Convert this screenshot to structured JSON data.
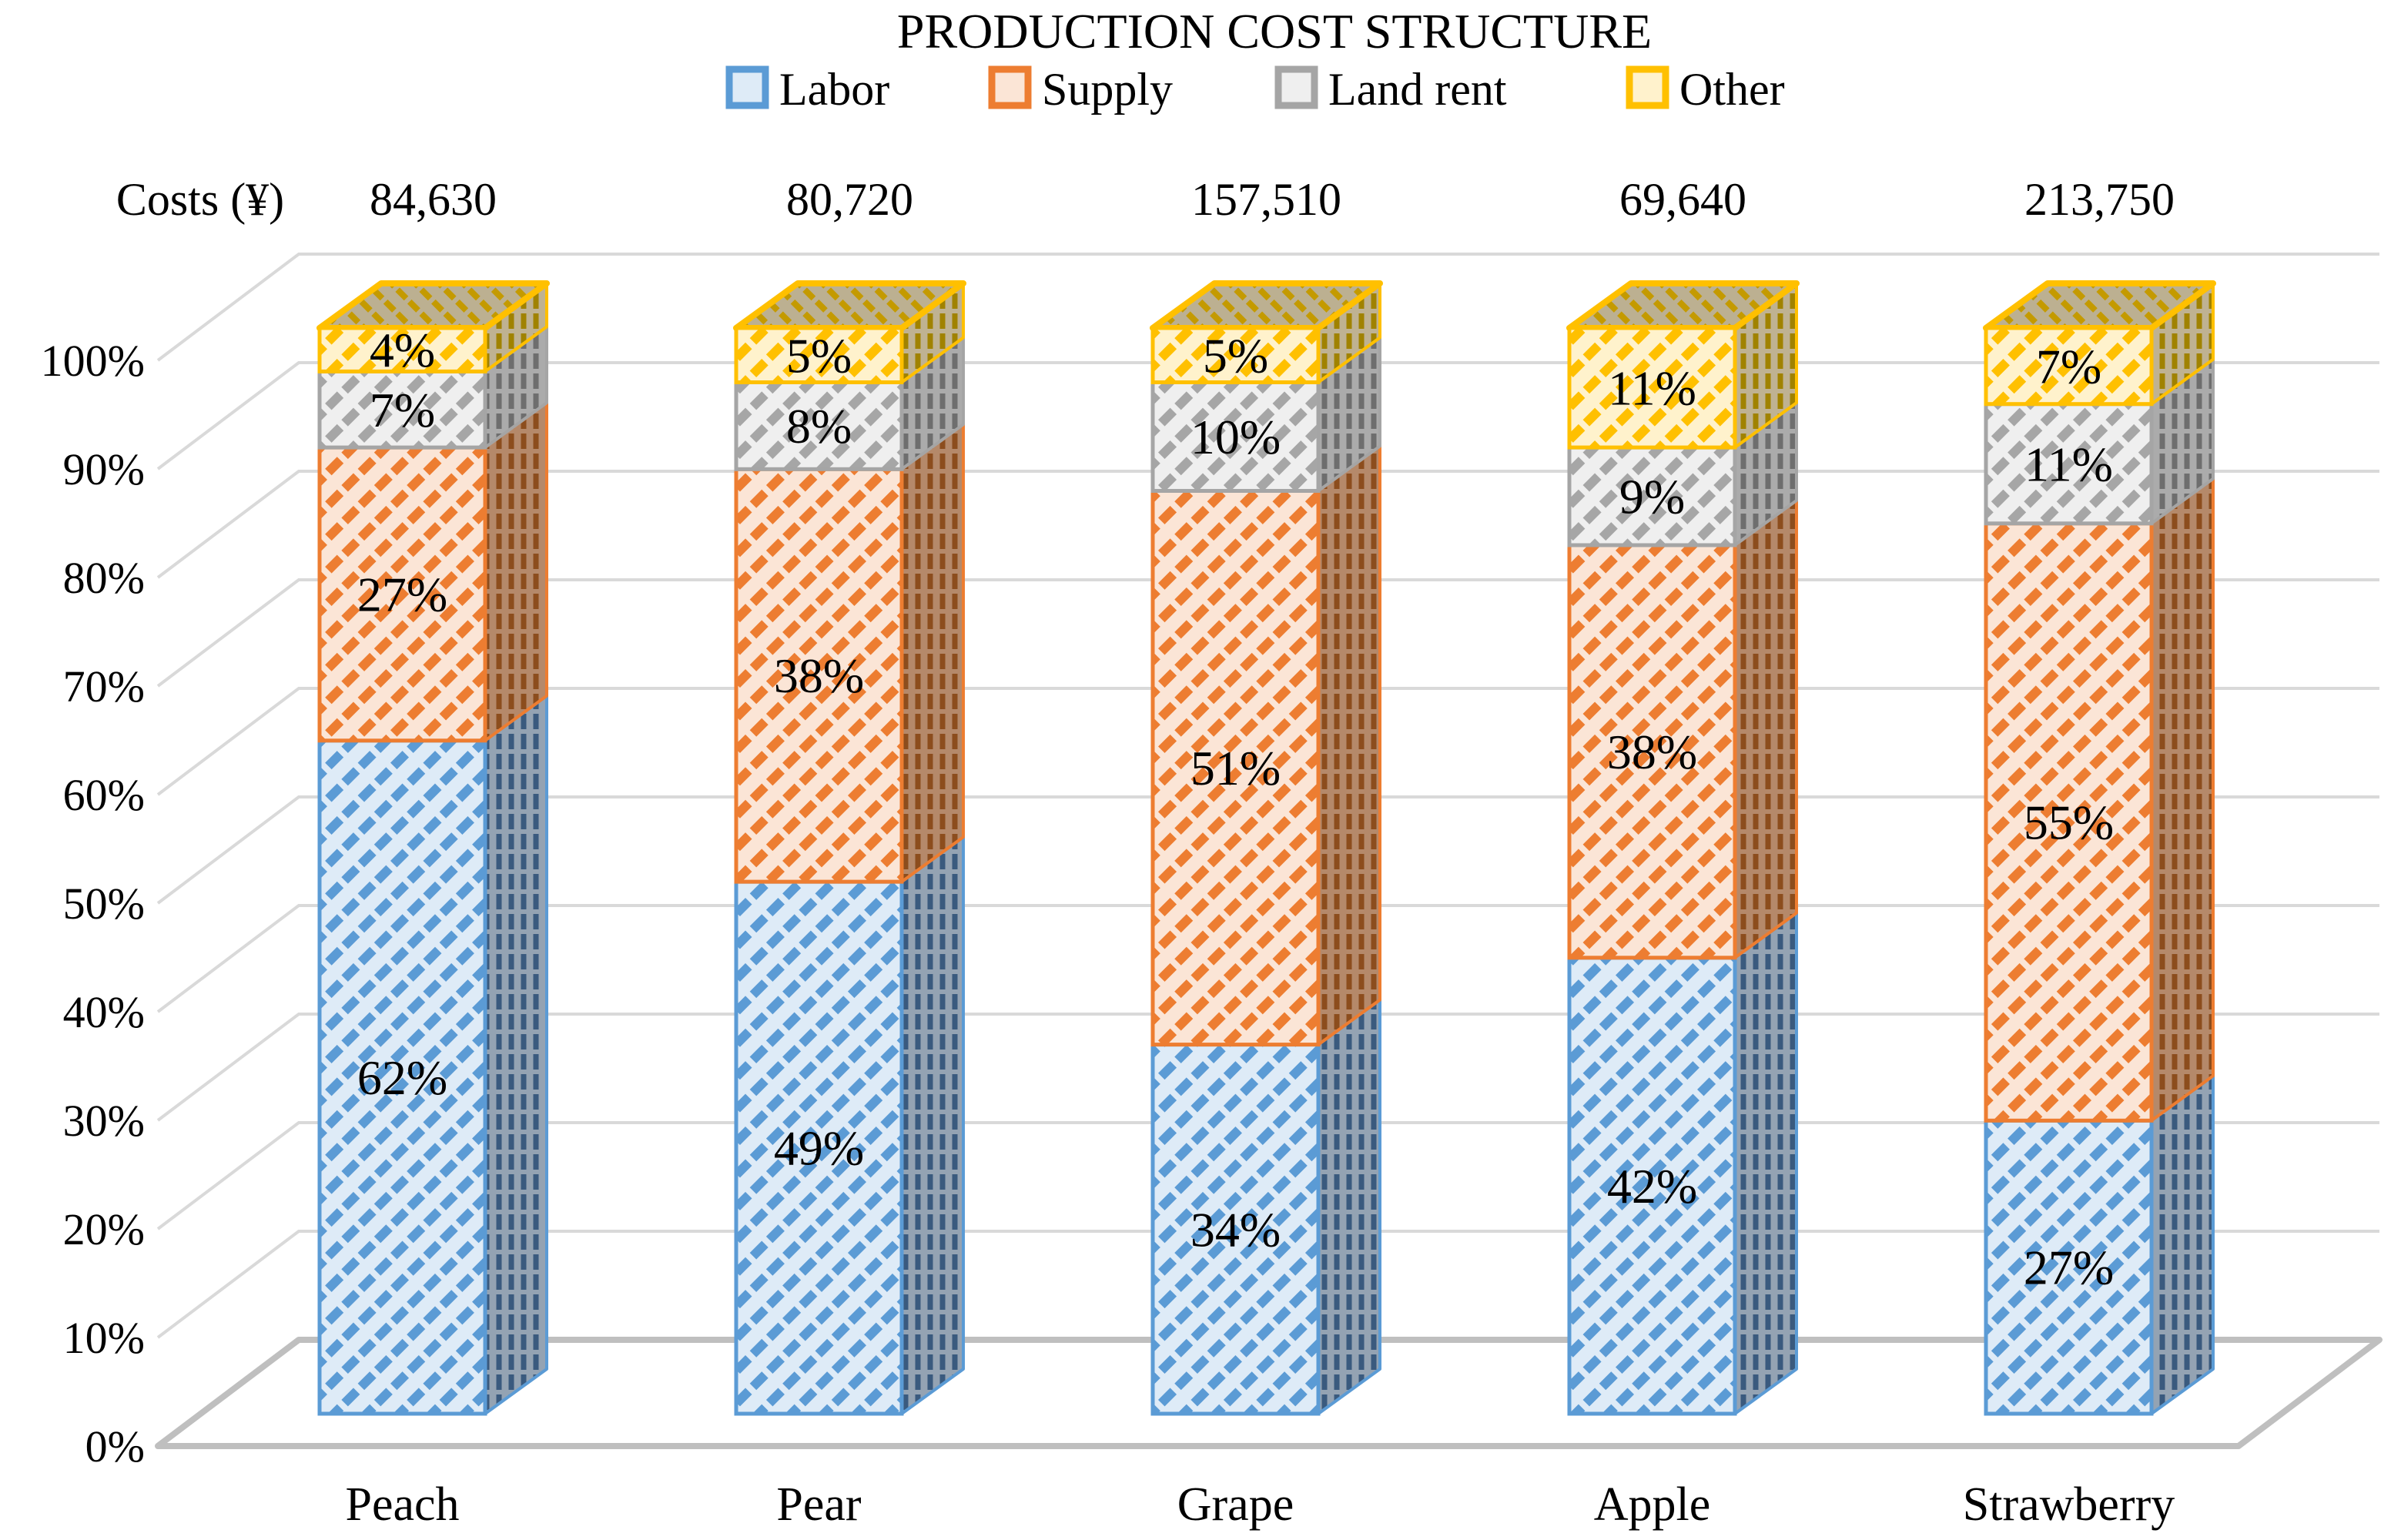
{
  "page": {
    "background": "#FFFFFF"
  },
  "chart_data": {
    "type": "bar",
    "subtype": "100-percent-stacked-column-3d",
    "title": "PRODUCTION COST STRUCTURE",
    "legend_position": "top",
    "grid": true,
    "categories": [
      "Peach",
      "Pear",
      "Grape",
      "Apple",
      "Strawberry"
    ],
    "costs_header": "Costs (¥)",
    "costs": [
      "84,630",
      "80,720",
      "157,510",
      "69,640",
      "213,750"
    ],
    "series": [
      {
        "name": "Labor",
        "values": [
          62,
          49,
          34,
          42,
          27
        ],
        "border": "#5B9BD5",
        "fill": "#DEEBF7",
        "hatch": "#5B9BD5",
        "side_fill": "#94A3B3",
        "side_hatch": "#3A5A7E"
      },
      {
        "name": "Supply",
        "values": [
          27,
          38,
          51,
          38,
          55
        ],
        "border": "#ED7D31",
        "fill": "#FBE5D6",
        "hatch": "#ED7D31",
        "side_fill": "#B5896A",
        "side_hatch": "#8C4D1D"
      },
      {
        "name": "Land rent",
        "values": [
          7,
          8,
          10,
          9,
          11
        ],
        "border": "#A5A5A5",
        "fill": "#EFEFEF",
        "hatch": "#A6A6A6",
        "side_fill": "#ABABAB",
        "side_hatch": "#6E6E6E"
      },
      {
        "name": "Other",
        "values": [
          4,
          5,
          5,
          11,
          7
        ],
        "border": "#FFC000",
        "fill": "#FFF2CC",
        "hatch": "#FFC000",
        "side_fill": "#BFB292",
        "side_hatch": "#A08200"
      }
    ],
    "top_face": {
      "fill": "#BCB091",
      "hatch": "#C49A00",
      "border": "#FFC000"
    },
    "yticks": [
      "0%",
      "10%",
      "20%",
      "30%",
      "40%",
      "50%",
      "60%",
      "70%",
      "80%",
      "90%",
      "100%"
    ],
    "ylim": [
      0,
      100
    ],
    "data_labels_unit": "%",
    "grid_color": "#D9D9D9",
    "axis_color": "#BFBFBF",
    "text_color": "#000000"
  }
}
